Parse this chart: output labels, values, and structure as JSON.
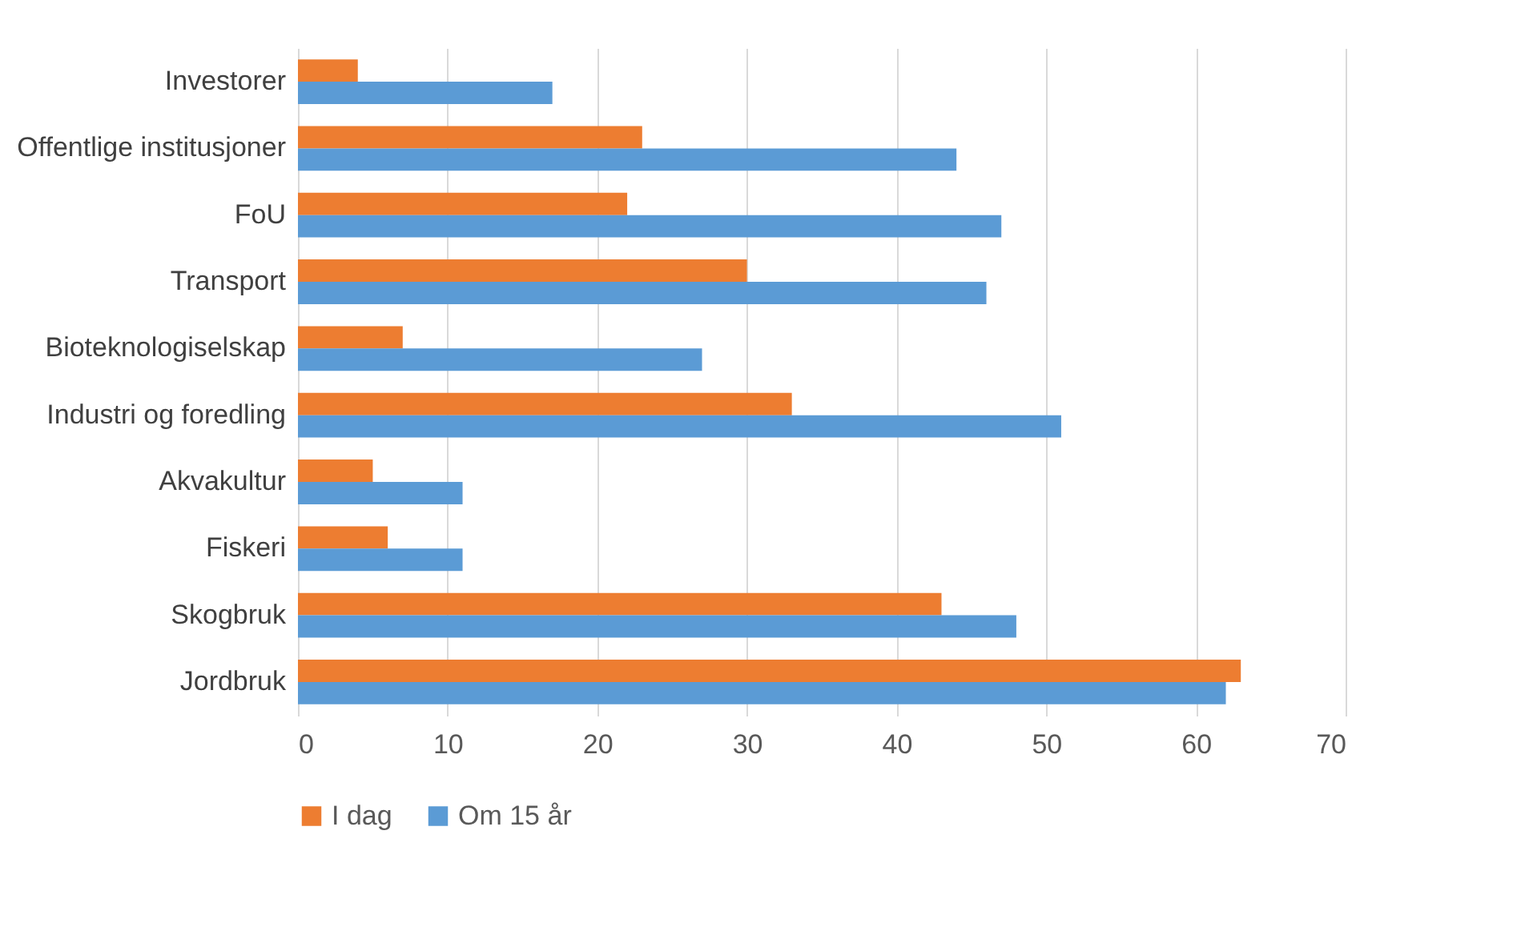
{
  "chart_data": {
    "type": "bar",
    "orientation": "horizontal",
    "categories": [
      "Investorer",
      "Offentlige institusjoner",
      "FoU",
      "Transport",
      "Bioteknologiselskap",
      "Industri og foredling",
      "Akvakultur",
      "Fiskeri",
      "Skogbruk",
      "Jordbruk"
    ],
    "series": [
      {
        "name": "I dag",
        "color": "#ed7d31",
        "values": [
          4,
          23,
          22,
          30,
          7,
          33,
          5,
          6,
          43,
          63
        ]
      },
      {
        "name": "Om 15 år",
        "color": "#5b9bd5",
        "values": [
          17,
          44,
          47,
          46,
          27,
          51,
          11,
          11,
          48,
          62
        ]
      }
    ],
    "xlim": [
      0,
      70
    ],
    "xticks": [
      0,
      10,
      20,
      30,
      40,
      50,
      60,
      70
    ],
    "grid": "x",
    "legend": "bottom"
  }
}
